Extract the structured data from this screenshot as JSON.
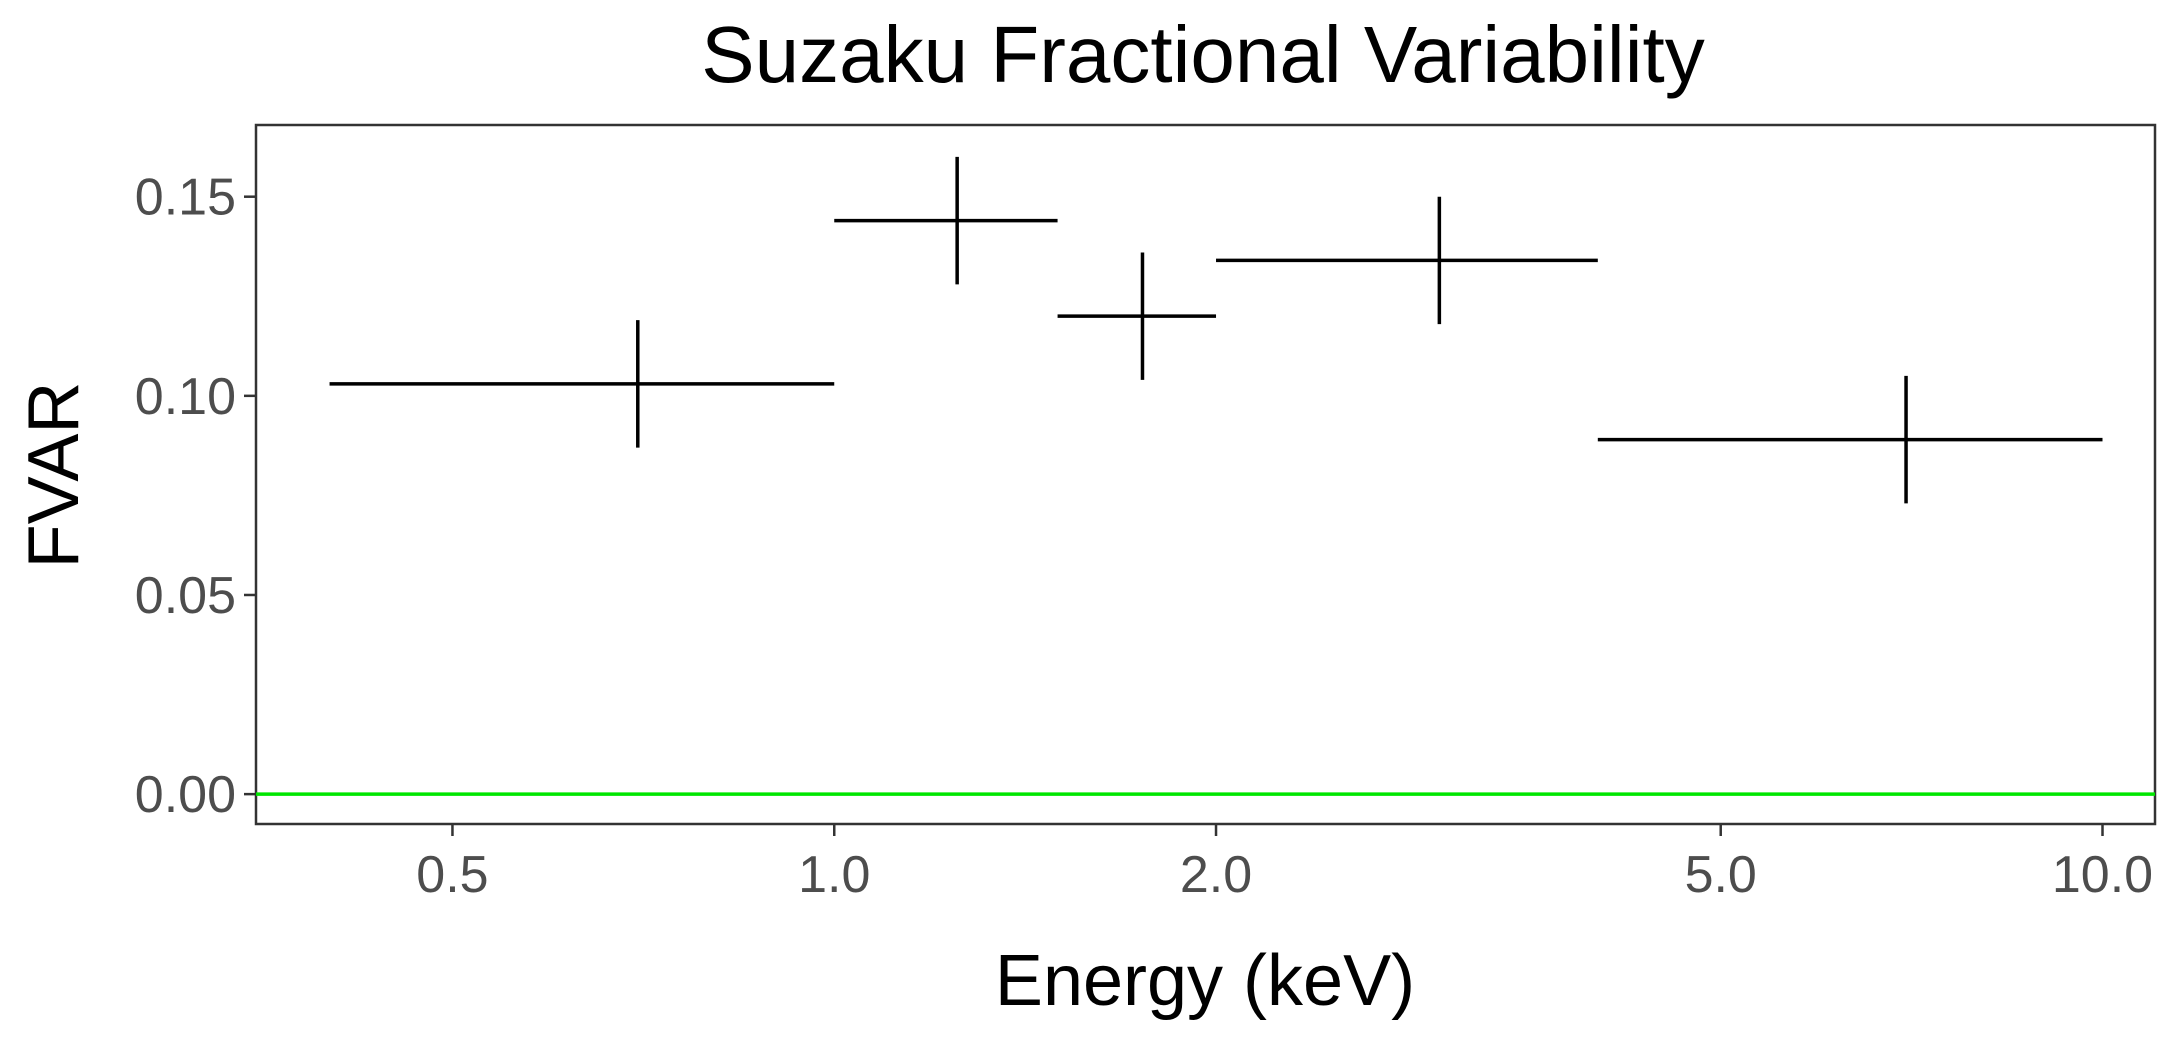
{
  "chart_data": {
    "type": "scatter",
    "title": "Suzaku Fractional Variability",
    "xlabel": "Energy (keV)",
    "ylabel": "FVAR",
    "x_scale": "log",
    "xlim": [
      0.35,
      11.0
    ],
    "ylim": [
      -0.0075,
      0.168
    ],
    "x_ticks": [
      0.5,
      1.0,
      2.0,
      5.0,
      10.0
    ],
    "x_tick_labels": [
      "0.5",
      "1.0",
      "2.0",
      "5.0",
      "10.0"
    ],
    "y_ticks": [
      0.0,
      0.05,
      0.1,
      0.15
    ],
    "y_tick_labels": [
      "0.00",
      "0.05",
      "0.10",
      "0.15"
    ],
    "grid": false,
    "legend": "none",
    "series": [
      {
        "points": [
          {
            "x": 0.7,
            "x_low": 0.4,
            "x_high": 1.0,
            "y": 0.103,
            "y_low": 0.087,
            "y_high": 0.119
          },
          {
            "x": 1.25,
            "x_low": 1.0,
            "x_high": 1.5,
            "y": 0.144,
            "y_low": 0.128,
            "y_high": 0.16
          },
          {
            "x": 1.75,
            "x_low": 1.5,
            "x_high": 2.0,
            "y": 0.12,
            "y_low": 0.104,
            "y_high": 0.136
          },
          {
            "x": 3.0,
            "x_low": 2.0,
            "x_high": 4.0,
            "y": 0.134,
            "y_low": 0.118,
            "y_high": 0.15
          },
          {
            "x": 7.0,
            "x_low": 4.0,
            "x_high": 10.0,
            "y": 0.089,
            "y_low": 0.073,
            "y_high": 0.105
          }
        ]
      }
    ],
    "reference_line": {
      "y": 0.0
    },
    "colors": {
      "points": "#000000",
      "reference_line": "#00e600",
      "tick_labels": "#4d4d4d",
      "panel_border": "#333333"
    }
  }
}
